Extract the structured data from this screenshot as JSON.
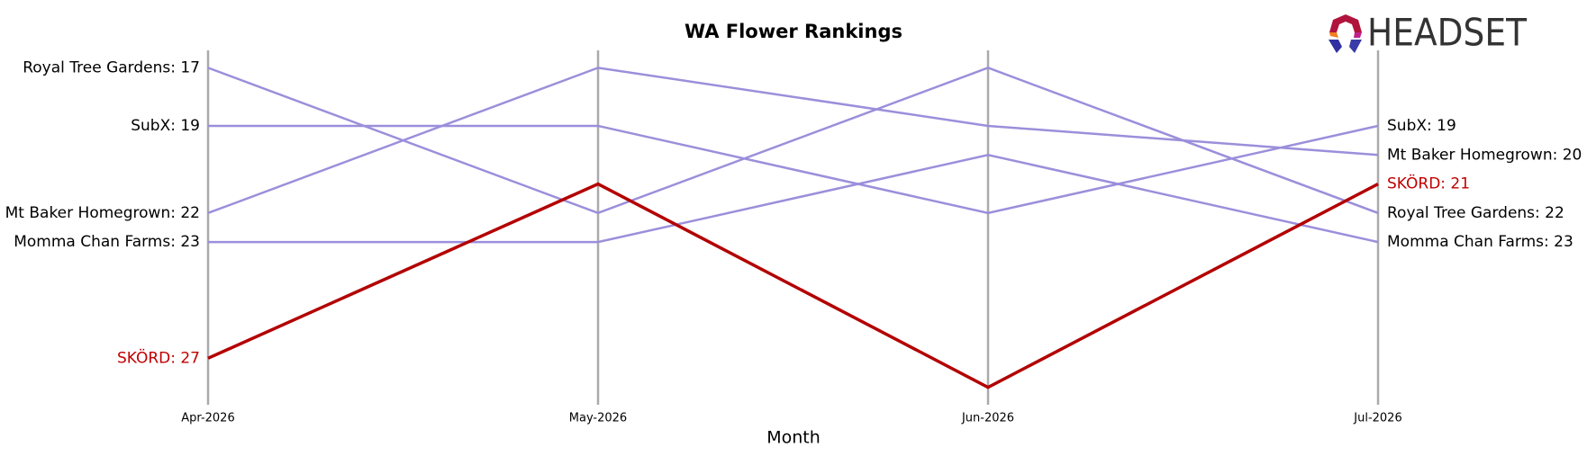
{
  "chart_data": {
    "type": "bump",
    "title": "WA Flower Rankings",
    "x_label": "Month",
    "logo_text": "HEADSET",
    "categories": [
      "Apr-2026",
      "May-2026",
      "Jun-2026",
      "Jul-2026"
    ],
    "ylim": [
      16.4,
      28.6
    ],
    "y_inverted": true,
    "series": [
      {
        "name": "Royal Tree Gardens",
        "color": "#9b8fdb",
        "values": [
          17,
          22,
          17,
          22
        ],
        "value_labels": [
          "Royal Tree Gardens: 17",
          null,
          null,
          "Royal Tree Gardens: 22"
        ]
      },
      {
        "name": "SubX",
        "color": "#9b8fdb",
        "values": [
          19,
          19,
          22,
          19
        ],
        "value_labels": [
          "SubX: 19",
          null,
          null,
          "SubX: 19"
        ]
      },
      {
        "name": "Mt Baker Homegrown",
        "color": "#9b8fdb",
        "values": [
          22,
          17,
          19,
          20
        ],
        "value_labels": [
          "Mt Baker Homegrown: 22",
          null,
          null,
          "Mt Baker Homegrown: 20"
        ]
      },
      {
        "name": "Momma Chan Farms",
        "color": "#9b8fdb",
        "values": [
          23,
          23,
          20,
          23
        ],
        "value_labels": [
          "Momma Chan Farms: 23",
          null,
          null,
          "Momma Chan Farms: 23"
        ]
      },
      {
        "name": "SKÖRD",
        "color": "#b30000",
        "label_color": "#c00000",
        "values": [
          27,
          21,
          28,
          21
        ],
        "value_labels": [
          "SKÖRD: 27",
          null,
          null,
          "SKÖRD: 21"
        ]
      }
    ]
  }
}
